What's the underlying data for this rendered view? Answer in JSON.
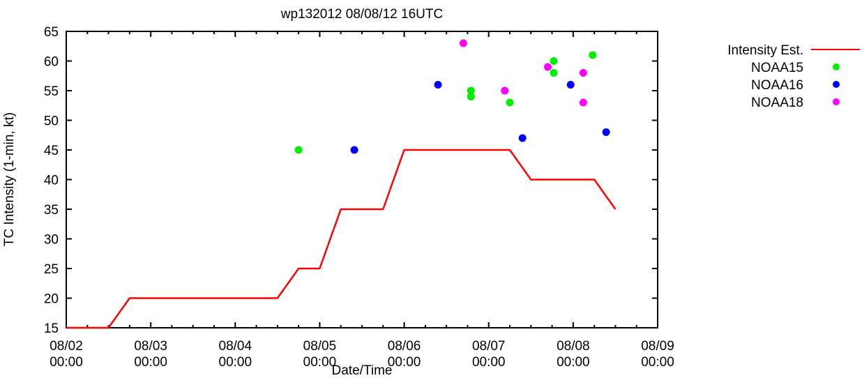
{
  "title": "wp132012 08/08/12 16UTC",
  "axes": {
    "x_label": "Date/Time",
    "y_label": "TC Intensity (1-min, kt)",
    "y_ticks": [
      15,
      20,
      25,
      30,
      35,
      40,
      45,
      50,
      55,
      60,
      65
    ],
    "x_ticks": [
      {
        "date": "08/02",
        "time": "00:00"
      },
      {
        "date": "08/03",
        "time": "00:00"
      },
      {
        "date": "08/04",
        "time": "00:00"
      },
      {
        "date": "08/05",
        "time": "00:00"
      },
      {
        "date": "08/06",
        "time": "00:00"
      },
      {
        "date": "08/07",
        "time": "00:00"
      },
      {
        "date": "08/08",
        "time": "00:00"
      },
      {
        "date": "08/09",
        "time": "00:00"
      }
    ],
    "minor_tick_hours": 6,
    "axis_color": "#000000"
  },
  "legend": [
    {
      "label": "Intensity Est.",
      "type": "line",
      "color": "#ff0000"
    },
    {
      "label": "NOAA15",
      "type": "dot",
      "color": "#00ee00"
    },
    {
      "label": "NOAA16",
      "type": "dot",
      "color": "#0000ff"
    },
    {
      "label": "NOAA18",
      "type": "dot",
      "color": "#ff00ff"
    }
  ],
  "chart_data": {
    "type": "line",
    "title": "wp132012 08/08/12 16UTC",
    "xlabel": "Date/Time",
    "ylabel": "TC Intensity (1-min, kt)",
    "ylim": [
      15,
      65
    ],
    "x_axis": {
      "start": "08/02 00:00",
      "end": "08/09 00:00",
      "units": "days since 08/02 00:00",
      "major_tick": "1 day",
      "minor_tick": "6 hours"
    },
    "grid": false,
    "legend_position": "outside-right-top",
    "series": [
      {
        "name": "Intensity Est.",
        "type": "line",
        "color": "#ff0000",
        "points": [
          [
            0,
            15
          ],
          [
            0.5,
            15
          ],
          [
            0.75,
            20
          ],
          [
            2.5,
            20
          ],
          [
            2.75,
            25
          ],
          [
            3.0,
            25
          ],
          [
            3.25,
            35
          ],
          [
            3.75,
            35
          ],
          [
            4.0,
            45
          ],
          [
            5.25,
            45
          ],
          [
            5.5,
            40
          ],
          [
            6.25,
            40
          ],
          [
            6.5,
            35
          ]
        ]
      },
      {
        "name": "NOAA15",
        "type": "scatter",
        "color": "#00ee00",
        "points": [
          [
            2.75,
            45
          ],
          [
            4.79,
            55
          ],
          [
            4.79,
            54
          ],
          [
            5.25,
            53
          ],
          [
            5.77,
            60
          ],
          [
            5.77,
            58
          ],
          [
            6.23,
            61
          ]
        ]
      },
      {
        "name": "NOAA16",
        "type": "scatter",
        "color": "#0000ff",
        "points": [
          [
            3.41,
            45
          ],
          [
            4.4,
            56
          ],
          [
            5.4,
            47
          ],
          [
            5.97,
            56
          ],
          [
            6.39,
            48
          ]
        ]
      },
      {
        "name": "NOAA18",
        "type": "scatter",
        "color": "#ff00ff",
        "points": [
          [
            4.7,
            63
          ],
          [
            5.19,
            55
          ],
          [
            5.7,
            59
          ],
          [
            6.12,
            58
          ],
          [
            6.12,
            53
          ]
        ]
      }
    ]
  }
}
